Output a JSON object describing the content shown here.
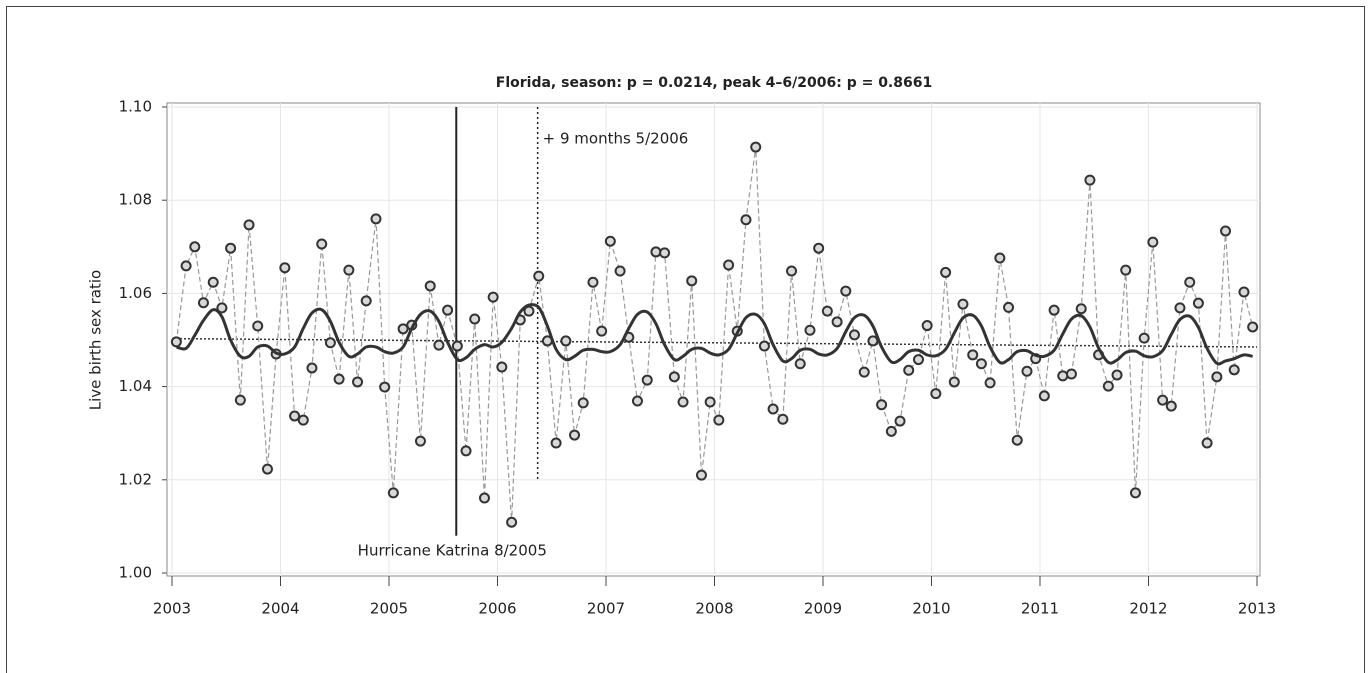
{
  "chart_data": {
    "type": "line",
    "title": "Florida, season: p = 0.0214, peak 4–6/2006: p = 0.8661",
    "y_label": "Live birth sex ratio",
    "xlim": [
      2003,
      2013
    ],
    "xticks": [
      2003,
      2004,
      2005,
      2006,
      2007,
      2008,
      2009,
      2010,
      2011,
      2012,
      2013
    ],
    "ylim": [
      1.0,
      1.1
    ],
    "yticks": [
      {
        "value": 1.0,
        "label": "1.00"
      },
      1.02,
      1.04,
      1.06,
      1.08,
      {
        "value": 1.1,
        "label": "1.10"
      }
    ],
    "grid": true,
    "x": [
      2003.04,
      2003.13,
      2003.21,
      2003.29,
      2003.38,
      2003.46,
      2003.54,
      2003.63,
      2003.71,
      2003.79,
      2003.88,
      2003.96,
      2004.04,
      2004.13,
      2004.21,
      2004.29,
      2004.38,
      2004.46,
      2004.54,
      2004.63,
      2004.71,
      2004.79,
      2004.88,
      2004.96,
      2005.04,
      2005.13,
      2005.21,
      2005.29,
      2005.38,
      2005.46,
      2005.54,
      2005.63,
      2005.71,
      2005.79,
      2005.88,
      2005.96,
      2006.04,
      2006.13,
      2006.21,
      2006.29,
      2006.38,
      2006.46,
      2006.54,
      2006.63,
      2006.71,
      2006.79,
      2006.88,
      2006.96,
      2007.04,
      2007.13,
      2007.21,
      2007.29,
      2007.38,
      2007.46,
      2007.54,
      2007.63,
      2007.71,
      2007.79,
      2007.88,
      2007.96,
      2008.04,
      2008.13,
      2008.21,
      2008.29,
      2008.38,
      2008.46,
      2008.54,
      2008.63,
      2008.71,
      2008.79,
      2008.88,
      2008.96,
      2009.04,
      2009.13,
      2009.21,
      2009.29,
      2009.38,
      2009.46,
      2009.54,
      2009.63,
      2009.71,
      2009.79,
      2009.88,
      2009.96,
      2010.04,
      2010.13,
      2010.21,
      2010.29,
      2010.38,
      2010.46,
      2010.54,
      2010.63,
      2010.71,
      2010.79,
      2010.88,
      2010.96,
      2011.04,
      2011.13,
      2011.21,
      2011.29,
      2011.38,
      2011.46,
      2011.54,
      2011.63,
      2011.71,
      2011.79,
      2011.88,
      2011.96,
      2012.04,
      2012.13,
      2012.21,
      2012.29,
      2012.38,
      2012.46,
      2012.54,
      2012.63,
      2012.71,
      2012.79,
      2012.88,
      2012.96
    ],
    "series": [
      {
        "color": "#999999",
        "marker_color": "#333333",
        "style": "dashed",
        "marker": "circle",
        "values": [
          1.0496,
          1.0659,
          1.07,
          1.058,
          1.0624,
          1.0569,
          1.0697,
          1.0371,
          1.0747,
          1.053,
          1.0223,
          1.047,
          1.0655,
          1.0337,
          1.0328,
          1.044,
          1.0706,
          1.0494,
          1.0416,
          1.065,
          1.041,
          1.0584,
          1.076,
          1.0399,
          1.0172,
          1.0524,
          1.0532,
          1.0283,
          1.0616,
          1.0489,
          1.0564,
          1.0487,
          1.0262,
          1.0545,
          1.0161,
          1.0592,
          1.0442,
          1.0109,
          1.0543,
          1.0562,
          1.0637,
          1.0498,
          1.0279,
          1.0498,
          1.0296,
          1.0365,
          1.0624,
          1.0519,
          1.0712,
          1.0648,
          1.0506,
          1.0369,
          1.0414,
          1.0689,
          1.0687,
          1.0421,
          1.0367,
          1.0627,
          1.021,
          1.0367,
          1.0328,
          1.0661,
          1.0519,
          1.0758,
          1.0914,
          1.0487,
          1.0352,
          1.033,
          1.0648,
          1.0449,
          1.0521,
          1.0697,
          1.0562,
          1.0539,
          1.0605,
          1.0511,
          1.0431,
          1.0498,
          1.0361,
          1.0304,
          1.0326,
          1.0435,
          1.0458,
          1.0531,
          1.0385,
          1.0645,
          1.041,
          1.0577,
          1.0468,
          1.0449,
          1.0408,
          1.0676,
          1.057,
          1.0285,
          1.0433,
          1.046,
          1.038,
          1.0564,
          1.0423,
          1.0427,
          1.0567,
          1.0843,
          1.0468,
          1.0401,
          1.0425,
          1.065,
          1.0172,
          1.0504,
          1.071,
          1.0371,
          1.0358,
          1.0569,
          1.0624,
          1.0579,
          1.0279,
          1.0421,
          1.0734,
          1.0436,
          1.0603,
          1.0528
        ]
      },
      {
        "color": "#333333",
        "style": "smooth",
        "values": [
          1.0485,
          1.0482,
          1.051,
          1.0542,
          1.0565,
          1.055,
          1.05,
          1.0465,
          1.0465,
          1.0485,
          1.0487,
          1.0472,
          1.047,
          1.0485,
          1.0525,
          1.0558,
          1.0565,
          1.054,
          1.0495,
          1.0465,
          1.047,
          1.0485,
          1.0485,
          1.0475,
          1.0472,
          1.0485,
          1.0525,
          1.0555,
          1.0562,
          1.054,
          1.0495,
          1.0458,
          1.0462,
          1.048,
          1.049,
          1.0485,
          1.0495,
          1.0525,
          1.056,
          1.0575,
          1.057,
          1.053,
          1.048,
          1.0458,
          1.0465,
          1.0478,
          1.048,
          1.0475,
          1.0475,
          1.049,
          1.0525,
          1.0555,
          1.056,
          1.0535,
          1.049,
          1.0458,
          1.0465,
          1.048,
          1.0482,
          1.0472,
          1.0468,
          1.048,
          1.0515,
          1.0548,
          1.0555,
          1.0535,
          1.049,
          1.0455,
          1.046,
          1.0478,
          1.048,
          1.047,
          1.0468,
          1.0482,
          1.0518,
          1.0548,
          1.0553,
          1.053,
          1.0485,
          1.0453,
          1.0458,
          1.0475,
          1.0478,
          1.0468,
          1.0466,
          1.048,
          1.0515,
          1.0547,
          1.0553,
          1.053,
          1.0485,
          1.0452,
          1.0458,
          1.0475,
          1.0477,
          1.0467,
          1.0465,
          1.0478,
          1.0513,
          1.0545,
          1.0552,
          1.0528,
          1.0483,
          1.0452,
          1.0457,
          1.0473,
          1.0476,
          1.0466,
          1.0464,
          1.0477,
          1.0512,
          1.0544,
          1.0551,
          1.0527,
          1.0482,
          1.045,
          1.0455,
          1.046,
          1.0468,
          1.0465
        ]
      }
    ],
    "trend": {
      "x": [
        2003,
        2013
      ],
      "values": [
        1.0503,
        1.0485
      ],
      "color": "#333333"
    },
    "annotations": [
      {
        "text": "Hurricane Katrina 8/2005",
        "x": 2005.62,
        "yrange": [
          1.008,
          1.1
        ],
        "style": "solid"
      },
      {
        "text": "+ 9 months 5/2006",
        "x": 2006.37,
        "yrange": [
          1.02,
          1.1
        ],
        "style": "dotted"
      }
    ]
  }
}
